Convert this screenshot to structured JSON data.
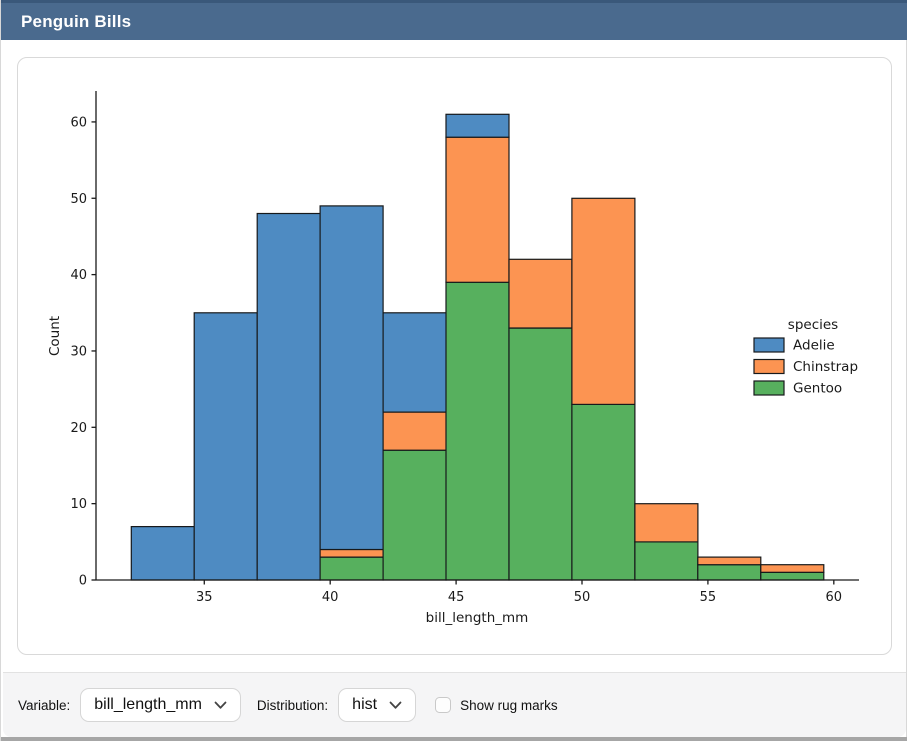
{
  "header": {
    "title": "Penguin Bills",
    "background": "#4a6a8e",
    "top_edge_color": "#3a587a"
  },
  "toolbar": {
    "variable_label": "Variable:",
    "variable_value": "bill_length_mm",
    "distribution_label": "Distribution:",
    "distribution_value": "hist",
    "rug_label": "Show rug marks",
    "rug_checked": false,
    "chevron_icon": "chevron-down"
  },
  "chart_data": {
    "type": "bar",
    "subtype": "stacked-histogram",
    "title": "",
    "xlabel": "bill_length_mm",
    "ylabel": "Count",
    "legend_title": "species",
    "legend_position": "center right",
    "grid": false,
    "xlim": [
      30.7,
      61.0
    ],
    "ylim": [
      0,
      64.05
    ],
    "x_ticks": [
      35,
      40,
      45,
      50,
      55,
      60
    ],
    "y_ticks": [
      0,
      10,
      20,
      30,
      40,
      50,
      60
    ],
    "bin_edges": [
      32.1,
      34.6,
      37.1,
      39.6,
      42.1,
      44.6,
      47.1,
      49.6,
      52.1,
      54.6,
      57.1,
      59.6
    ],
    "series": [
      {
        "name": "Adelie",
        "color": "#4e8bc2",
        "values": [
          7,
          35,
          48,
          45,
          13,
          3,
          0,
          0,
          0,
          0,
          0
        ]
      },
      {
        "name": "Chinstrap",
        "color": "#fc9452",
        "values": [
          0,
          0,
          0,
          1,
          5,
          19,
          9,
          27,
          5,
          1,
          1
        ]
      },
      {
        "name": "Gentoo",
        "color": "#57b05e",
        "values": [
          0,
          0,
          0,
          3,
          17,
          39,
          33,
          23,
          5,
          2,
          1
        ]
      }
    ],
    "stack_order_bottom_to_top": [
      "Gentoo",
      "Chinstrap",
      "Adelie"
    ],
    "bin_totals": [
      7,
      35,
      48,
      49,
      35,
      61,
      42,
      50,
      10,
      3,
      2
    ],
    "bar_edge_color": "#17191b",
    "axis_color": "#1a1a1a"
  }
}
